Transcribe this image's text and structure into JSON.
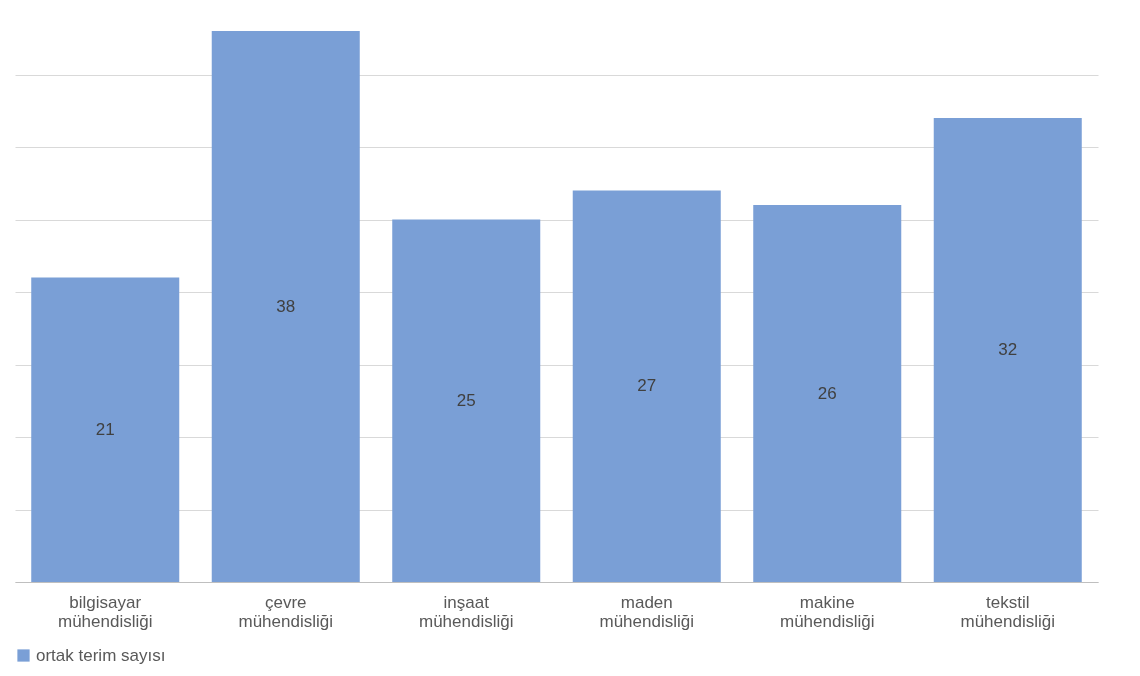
{
  "chart_data": {
    "type": "bar",
    "categories": [
      "bilgisayar mühendisliği",
      "çevre mühendisliği",
      "inşaat mühendisliği",
      "maden mühendisliği",
      "makine mühendisliği",
      "tekstil mühendisliği"
    ],
    "series": [
      {
        "name": "ortak terim sayısı",
        "color": "#7a9fd6",
        "values": [
          21,
          38,
          25,
          27,
          26,
          32
        ]
      }
    ],
    "ylim": [
      0,
      40
    ],
    "yticks": [
      {
        "value": 0,
        "label": null
      },
      {
        "value": 5,
        "label": null
      },
      {
        "value": 10,
        "label": null
      },
      {
        "value": 15,
        "label": null
      },
      {
        "value": 20,
        "label": null
      },
      {
        "value": 25,
        "label": null
      },
      {
        "value": 30,
        "label": null
      },
      {
        "value": 35,
        "label": null
      }
    ],
    "grid": "y",
    "tick_labels": "x",
    "legend": "bottom",
    "data_labels": true
  }
}
